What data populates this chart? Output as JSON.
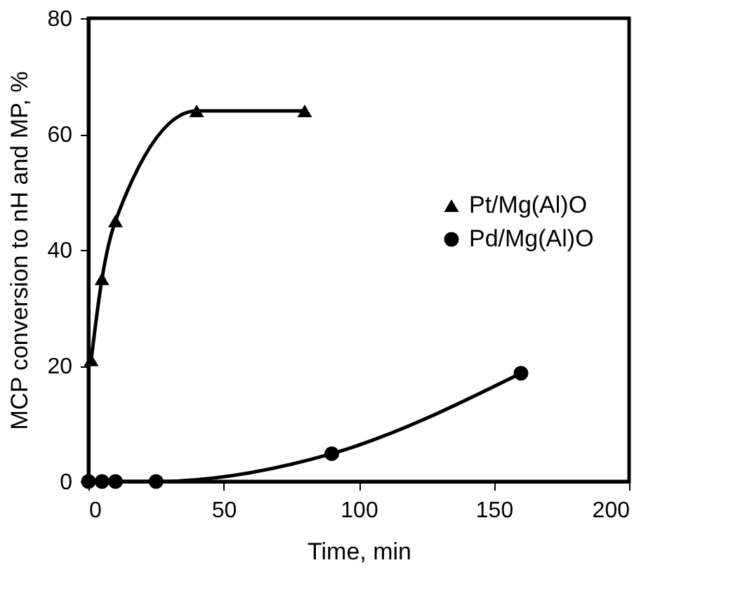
{
  "chart_data": {
    "type": "line",
    "xlabel": "Time, min",
    "ylabel": "MCP conversion to nH and MP, %",
    "xlim": [
      0,
      200
    ],
    "xticks": [
      0,
      50,
      100,
      150,
      200
    ],
    "ylim": [
      0,
      80
    ],
    "yticks": [
      0,
      20,
      40,
      60,
      80
    ],
    "grid": false,
    "legend": "right",
    "line_style": "solid",
    "series": [
      {
        "name": "Pt/Mg(Al)O",
        "color": "#000000",
        "marker": "triangle",
        "x": [
          1,
          5,
          10,
          40,
          80
        ],
        "values": [
          21,
          35,
          45,
          64,
          64
        ]
      },
      {
        "name": "Pd/Mg(Al)O",
        "color": "#000000",
        "marker": "circle",
        "x": [
          0,
          5,
          10,
          25,
          90,
          160
        ],
        "values": [
          0,
          0,
          0,
          0,
          4.8,
          18.7
        ]
      }
    ]
  }
}
